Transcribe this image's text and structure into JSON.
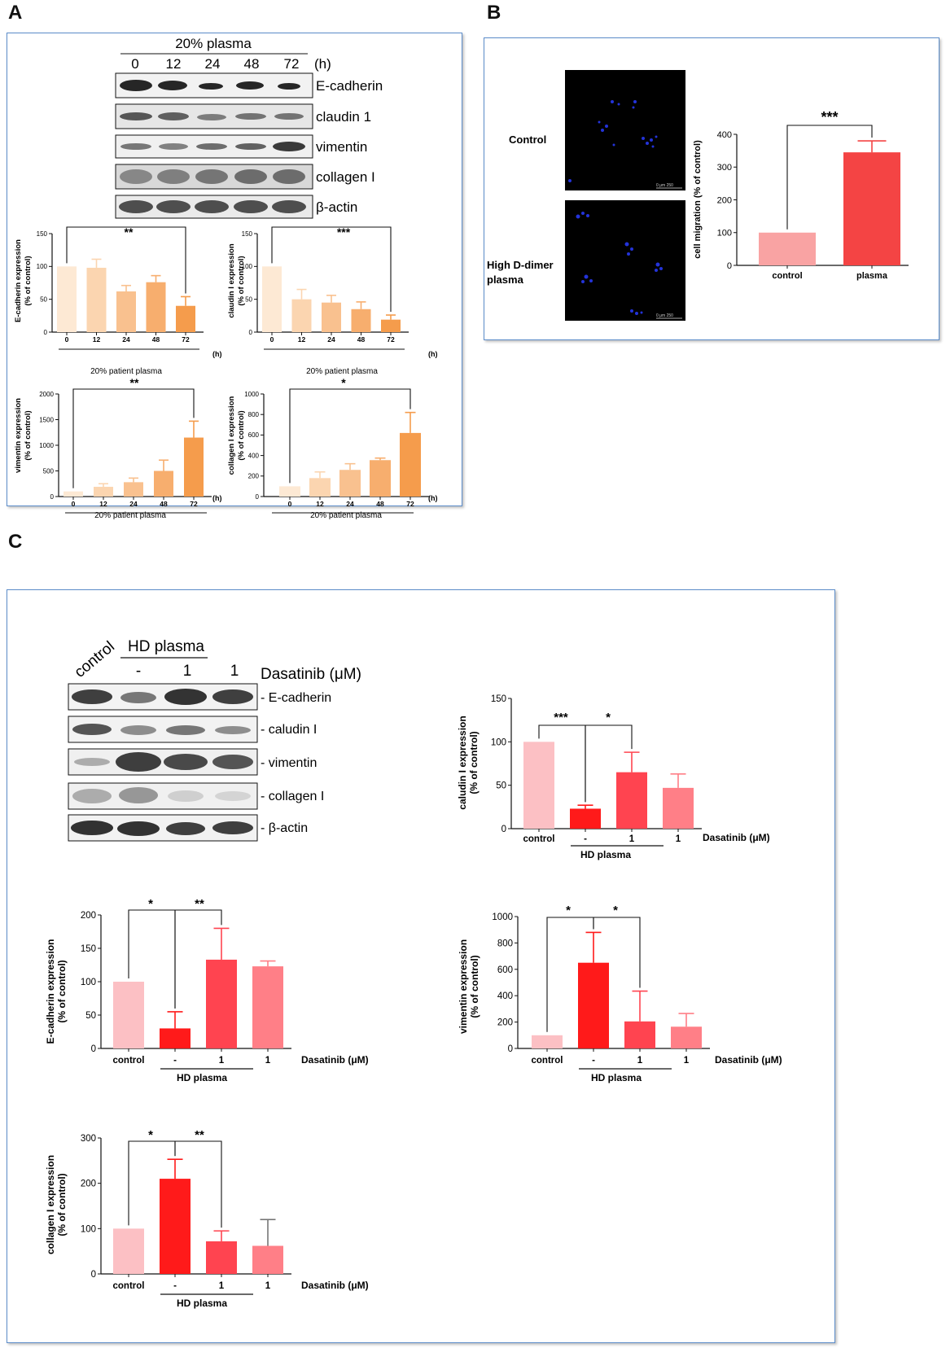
{
  "panels": {
    "A": "A",
    "B": "B",
    "C": "C"
  },
  "A": {
    "blot": {
      "header": "20% plasma",
      "lanes": [
        "0",
        "12",
        "24",
        "48",
        "72"
      ],
      "unit": "(h)",
      "proteins": [
        "E-cadherin",
        "claudin 1",
        "vimentin",
        "collagen I",
        "β-actin"
      ]
    },
    "charts": [
      {
        "ylabel_line1": "E-cadherin expression",
        "ylabel_line2": "(% of control)",
        "sig": "**",
        "xlabel": "20% patient plasma",
        "unit": "(h)"
      },
      {
        "ylabel_line1": "claudin I expression",
        "ylabel_line2": "(% of control)",
        "sig": "***",
        "xlabel": "20% patient plasma",
        "unit": "(h)"
      },
      {
        "ylabel_line1": "vimentin expression",
        "ylabel_line2": "(% of control)",
        "sig": "**",
        "xlabel": "20% patient plasma",
        "unit": "(h)"
      },
      {
        "ylabel_line1": "collagen I expression",
        "ylabel_line2": "(% of control)",
        "sig": "*",
        "xlabel": "20% patient plasma",
        "unit": "(h)"
      }
    ]
  },
  "B": {
    "row_labels": [
      "Control",
      "High D-dimer",
      "plasma"
    ],
    "scalebar": "0     μm 250",
    "chart": {
      "ylabel": "cell migration (% of control)",
      "sig": "***"
    }
  },
  "C": {
    "blot": {
      "control": "control",
      "group": "HD plasma",
      "lanes": [
        "-",
        "1",
        "1"
      ],
      "drug": "Dasatinib (μM)",
      "proteins": [
        "- E-cadherin",
        "- caludin I",
        "- vimentin",
        "- collagen I",
        "- β-actin"
      ]
    },
    "charts": [
      {
        "ylabel_line1": "caludin I expression",
        "ylabel_line2": "(% of control)",
        "sig1": "***",
        "sig2": "*",
        "group": "HD plasma",
        "drug": "Dasatinib (μM)"
      },
      {
        "ylabel_line1": "E-cadherin expression",
        "ylabel_line2": "(% of control)",
        "sig1": "*",
        "sig2": "**",
        "group": "HD plasma",
        "drug": "Dasatinib (μM)"
      },
      {
        "ylabel_line1": "vimentin expression",
        "ylabel_line2": "(% of control)",
        "sig1": "*",
        "sig2": "*",
        "group": "HD plasma",
        "drug": "Dasatinib (μM)"
      },
      {
        "ylabel_line1": "collagen I expression",
        "ylabel_line2": "(% of control)",
        "sig1": "*",
        "sig2": "**",
        "group": "HD plasma",
        "drug": "Dasatinib (μM)"
      }
    ]
  },
  "chart_data": [
    {
      "type": "bar",
      "panel": "A",
      "categories": [
        "0",
        "12",
        "24",
        "48",
        "72"
      ],
      "values": [
        100,
        98,
        62,
        76,
        40
      ],
      "errors": [
        0,
        13,
        9,
        10,
        14
      ],
      "ylim": [
        0,
        150
      ],
      "yticks": [
        0,
        50,
        100,
        150
      ],
      "colors": [
        "#fde9d4",
        "#fbd5b0",
        "#f9c18f",
        "#f7ae6e",
        "#f59c4c"
      ]
    },
    {
      "type": "bar",
      "panel": "A",
      "categories": [
        "0",
        "12",
        "24",
        "48",
        "72"
      ],
      "values": [
        100,
        50,
        45,
        35,
        19
      ],
      "errors": [
        0,
        15,
        11,
        11,
        7
      ],
      "ylim": [
        0,
        150
      ],
      "yticks": [
        0,
        50,
        100,
        150
      ],
      "colors": [
        "#fde9d4",
        "#fbd5b0",
        "#f9c18f",
        "#f7ae6e",
        "#f59c4c"
      ]
    },
    {
      "type": "bar",
      "panel": "A",
      "categories": [
        "0",
        "12",
        "24",
        "48",
        "72"
      ],
      "values": [
        100,
        190,
        280,
        500,
        1150
      ],
      "errors": [
        0,
        60,
        80,
        210,
        320
      ],
      "ylim": [
        0,
        2000
      ],
      "yticks": [
        0,
        500,
        1000,
        1500,
        2000
      ],
      "colors": [
        "#fde9d4",
        "#fbd5b0",
        "#f9c18f",
        "#f7ae6e",
        "#f59c4c"
      ]
    },
    {
      "type": "bar",
      "panel": "A",
      "categories": [
        "0",
        "12",
        "24",
        "48",
        "72"
      ],
      "values": [
        100,
        180,
        260,
        355,
        620
      ],
      "errors": [
        0,
        60,
        60,
        20,
        200
      ],
      "ylim": [
        0,
        1000
      ],
      "yticks": [
        0,
        200,
        400,
        600,
        800,
        1000
      ],
      "colors": [
        "#fde9d4",
        "#fbd5b0",
        "#f9c18f",
        "#f7ae6e",
        "#f59c4c"
      ]
    },
    {
      "type": "bar",
      "panel": "B",
      "categories": [
        "control",
        "plasma"
      ],
      "values": [
        100,
        345
      ],
      "errors": [
        0,
        35
      ],
      "ylim": [
        0,
        400
      ],
      "yticks": [
        0,
        100,
        200,
        300,
        400
      ],
      "colors": [
        "#f9a3a3",
        "#f44444"
      ]
    },
    {
      "type": "bar",
      "panel": "C",
      "categories": [
        "control",
        "-",
        "1",
        "1"
      ],
      "values": [
        100,
        23,
        65,
        47
      ],
      "errors": [
        0,
        4,
        23,
        16
      ],
      "ylim": [
        0,
        150
      ],
      "yticks": [
        0,
        50,
        100,
        150
      ],
      "colors": [
        "#fcc0c4",
        "#ff1a1a",
        "#ff4450",
        "#ff7f87"
      ]
    },
    {
      "type": "bar",
      "panel": "C",
      "categories": [
        "control",
        "-",
        "1",
        "1"
      ],
      "values": [
        100,
        30,
        133,
        123
      ],
      "errors": [
        0,
        25,
        47,
        8
      ],
      "ylim": [
        0,
        200
      ],
      "yticks": [
        0,
        50,
        100,
        150,
        200
      ],
      "colors": [
        "#fcc0c4",
        "#ff1a1a",
        "#ff4450",
        "#ff7f87"
      ]
    },
    {
      "type": "bar",
      "panel": "C",
      "categories": [
        "control",
        "-",
        "1",
        "1"
      ],
      "values": [
        100,
        650,
        205,
        165
      ],
      "errors": [
        0,
        230,
        230,
        100
      ],
      "ylim": [
        0,
        1000
      ],
      "yticks": [
        0,
        200,
        400,
        600,
        800,
        1000
      ],
      "colors": [
        "#fcc0c4",
        "#ff1a1a",
        "#ff4450",
        "#ff7f87"
      ]
    },
    {
      "type": "bar",
      "panel": "C",
      "categories": [
        "control",
        "-",
        "1",
        "1"
      ],
      "values": [
        100,
        210,
        72,
        62
      ],
      "errors": [
        0,
        43,
        23,
        58
      ],
      "ylim": [
        0,
        300
      ],
      "yticks": [
        0,
        100,
        200,
        300
      ],
      "colors": [
        "#fcc0c4",
        "#ff1a1a",
        "#ff4450",
        "#ff7f87"
      ]
    }
  ]
}
